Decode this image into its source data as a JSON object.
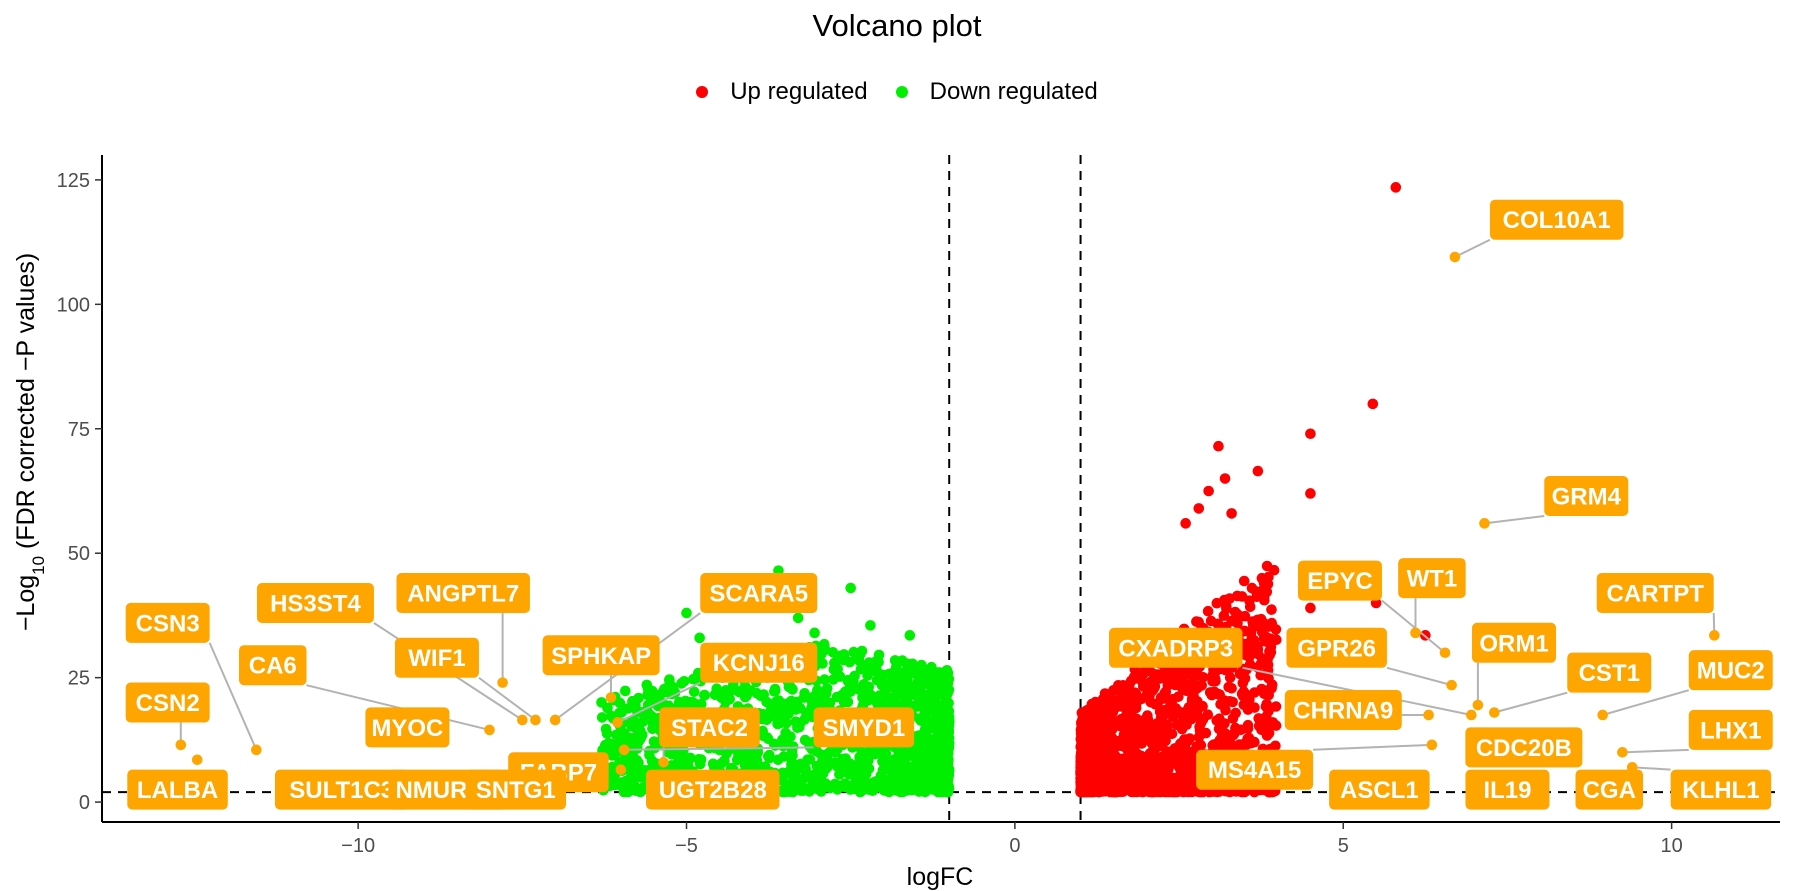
{
  "chart_data": {
    "type": "scatter",
    "title": "Volcano plot",
    "xlabel": "logFC",
    "ylabel": "−Log10 (FDR corrected −P values)",
    "xlim": [
      -13.9,
      11.65
    ],
    "ylim": [
      -4,
      130
    ],
    "x_ticks": [
      -10,
      -5,
      0,
      5,
      10
    ],
    "x_tick_labels": [
      "−10",
      "−5",
      "0",
      "5",
      "10"
    ],
    "y_ticks": [
      0,
      25,
      50,
      75,
      100,
      125
    ],
    "y_tick_labels": [
      "0",
      "25",
      "50",
      "75",
      "100",
      "125"
    ],
    "thresholds": {
      "logfc": [
        -1,
        1
      ],
      "neg_log10_p": 2
    },
    "grid": false,
    "legend_position": "top",
    "colors": {
      "up": "#ff0000",
      "down": "#00ee00",
      "labeled": "#ffa500",
      "threshold_line": "#000000"
    },
    "series": [
      {
        "name": "Up regulated",
        "color": "#ff0000",
        "points": [
          [
            5.8,
            123.5
          ],
          [
            5.45,
            80
          ],
          [
            4.5,
            74
          ],
          [
            3.1,
            71.5
          ],
          [
            3.7,
            66.5
          ],
          [
            3.2,
            65
          ],
          [
            4.5,
            62
          ],
          [
            2.95,
            62.5
          ],
          [
            2.8,
            59
          ],
          [
            3.3,
            58
          ],
          [
            2.6,
            56
          ],
          [
            5.5,
            40
          ],
          [
            6.25,
            33.5
          ],
          [
            4.5,
            39
          ]
        ],
        "cloud": {
          "x_range": [
            1.0,
            4.0
          ],
          "y_range": [
            2,
            50
          ],
          "count": 1400
        }
      },
      {
        "name": "Down regulated",
        "color": "#00ee00",
        "points": [
          [
            -3.6,
            46.5
          ],
          [
            -2.5,
            43
          ],
          [
            -5,
            38
          ],
          [
            -3.3,
            37
          ],
          [
            -2.2,
            35.5
          ],
          [
            -3.05,
            34
          ],
          [
            -4.8,
            33
          ],
          [
            -1.6,
            33.5
          ]
        ],
        "cloud": {
          "x_range": [
            -6.3,
            -1.0
          ],
          "y_range": [
            2,
            32
          ],
          "count": 1300
        }
      }
    ],
    "labeled_genes": [
      {
        "gene": "COL10A1",
        "x": 6.7,
        "y": 109.5
      },
      {
        "gene": "GRM4",
        "x": 7.15,
        "y": 56
      },
      {
        "gene": "EPYC",
        "x": 6.55,
        "y": 30
      },
      {
        "gene": "WT1",
        "x": 6.1,
        "y": 34
      },
      {
        "gene": "CARTPT",
        "x": 10.65,
        "y": 33.5
      },
      {
        "gene": "CXADRP3",
        "x": 6.95,
        "y": 17.5
      },
      {
        "gene": "GPR26",
        "x": 6.65,
        "y": 23.5
      },
      {
        "gene": "ORM1",
        "x": 7.05,
        "y": 19.5
      },
      {
        "gene": "CST1",
        "x": 7.3,
        "y": 18
      },
      {
        "gene": "MUC2",
        "x": 8.95,
        "y": 17.5
      },
      {
        "gene": "CHRNA9",
        "x": 6.3,
        "y": 17.5
      },
      {
        "gene": "CDC20B",
        "x": 7.5,
        "y": 12
      },
      {
        "gene": "LHX1",
        "x": 9.25,
        "y": 10
      },
      {
        "gene": "MS4A15",
        "x": 6.35,
        "y": 11.5
      },
      {
        "gene": "ASCL1",
        "x": 6.0,
        "y": 4.5
      },
      {
        "gene": "IL19",
        "x": 7.25,
        "y": 5
      },
      {
        "gene": "CGA",
        "x": 8.8,
        "y": 5
      },
      {
        "gene": "KLHL1",
        "x": 9.4,
        "y": 7
      },
      {
        "gene": "CSN3",
        "x": -11.55,
        "y": 10.5
      },
      {
        "gene": "CSN2",
        "x": -12.7,
        "y": 11.5
      },
      {
        "gene": "LALBA",
        "x": -12.45,
        "y": 8.5
      },
      {
        "gene": "HS3ST4",
        "x": -7.5,
        "y": 16.5
      },
      {
        "gene": "CA6",
        "x": -8.0,
        "y": 14.5
      },
      {
        "gene": "ANGPTL7",
        "x": -7.8,
        "y": 24
      },
      {
        "gene": "WIF1",
        "x": -7.3,
        "y": 16.5
      },
      {
        "gene": "MYOC",
        "x": -8.7,
        "y": 14
      },
      {
        "gene": "SPHKAP",
        "x": -6.15,
        "y": 21
      },
      {
        "gene": "SCARA5",
        "x": -7.0,
        "y": 16.5
      },
      {
        "gene": "KCNJ16",
        "x": -6.05,
        "y": 16
      },
      {
        "gene": "STAC2",
        "x": -5.35,
        "y": 8
      },
      {
        "gene": "SMYD1",
        "x": -5.95,
        "y": 10.5
      },
      {
        "gene": "FABP7",
        "x": -6.0,
        "y": 6.5
      },
      {
        "gene": "UGT2B28",
        "x": -5.45,
        "y": 4.5
      },
      {
        "gene": "SULT1C3",
        "x": -10.95,
        "y": 5
      },
      {
        "gene": "NMUR3B",
        "x": -9.2,
        "y": 3
      },
      {
        "gene": "SNTG1",
        "x": -7.5,
        "y": 2
      }
    ],
    "label_boxes": [
      {
        "gene": "COL10A1",
        "lx": 8.25,
        "ly": 117
      },
      {
        "gene": "GRM4",
        "lx": 8.7,
        "ly": 61.5
      },
      {
        "gene": "EPYC",
        "lx": 4.95,
        "ly": 44.5
      },
      {
        "gene": "WT1",
        "lx": 6.35,
        "ly": 45
      },
      {
        "gene": "CARTPT",
        "lx": 9.75,
        "ly": 42
      },
      {
        "gene": "CXADRP3",
        "lx": 2.45,
        "ly": 31
      },
      {
        "gene": "GPR26",
        "lx": 4.9,
        "ly": 31
      },
      {
        "gene": "ORM1",
        "lx": 7.6,
        "ly": 32
      },
      {
        "gene": "CST1",
        "lx": 9.05,
        "ly": 26
      },
      {
        "gene": "MUC2",
        "lx": 10.9,
        "ly": 26.5
      },
      {
        "gene": "CHRNA9",
        "lx": 5.0,
        "ly": 18.5
      },
      {
        "gene": "CDC20B",
        "lx": 7.75,
        "ly": 11
      },
      {
        "gene": "LHX1",
        "lx": 10.9,
        "ly": 14.5
      },
      {
        "gene": "MS4A15",
        "lx": 3.65,
        "ly": 6.5
      },
      {
        "gene": "ASCL1",
        "lx": 5.55,
        "ly": 2.5
      },
      {
        "gene": "IL19",
        "lx": 7.5,
        "ly": 2.5
      },
      {
        "gene": "CGA",
        "lx": 9.05,
        "ly": 2.5
      },
      {
        "gene": "KLHL1",
        "lx": 10.75,
        "ly": 2.5
      },
      {
        "gene": "CSN3",
        "lx": -12.9,
        "ly": 36
      },
      {
        "gene": "CSN2",
        "lx": -12.9,
        "ly": 20
      },
      {
        "gene": "LALBA",
        "lx": -12.75,
        "ly": 2.5
      },
      {
        "gene": "HS3ST4",
        "lx": -10.65,
        "ly": 40
      },
      {
        "gene": "CA6",
        "lx": -11.3,
        "ly": 27.5
      },
      {
        "gene": "ANGPTL7",
        "lx": -8.4,
        "ly": 42
      },
      {
        "gene": "WIF1",
        "lx": -8.8,
        "ly": 29
      },
      {
        "gene": "MYOC",
        "lx": -9.25,
        "ly": 15
      },
      {
        "gene": "SPHKAP",
        "lx": -6.3,
        "ly": 29.5
      },
      {
        "gene": "SCARA5",
        "lx": -3.9,
        "ly": 42
      },
      {
        "gene": "KCNJ16",
        "lx": -3.9,
        "ly": 28
      },
      {
        "gene": "STAC2",
        "lx": -4.65,
        "ly": 15
      },
      {
        "gene": "SMYD1",
        "lx": -2.3,
        "ly": 15
      },
      {
        "gene": "FABP7",
        "lx": -6.95,
        "ly": 6
      },
      {
        "gene": "UGT2B28",
        "lx": -4.6,
        "ly": 2.5
      },
      {
        "gene": "SULT1C3",
        "lx": -10.25,
        "ly": 2.5
      },
      {
        "gene": "NMUR3B",
        "lx": -8.65,
        "ly": 2.5
      },
      {
        "gene": "SNTG1",
        "lx": -7.6,
        "ly": 2.5
      }
    ]
  }
}
